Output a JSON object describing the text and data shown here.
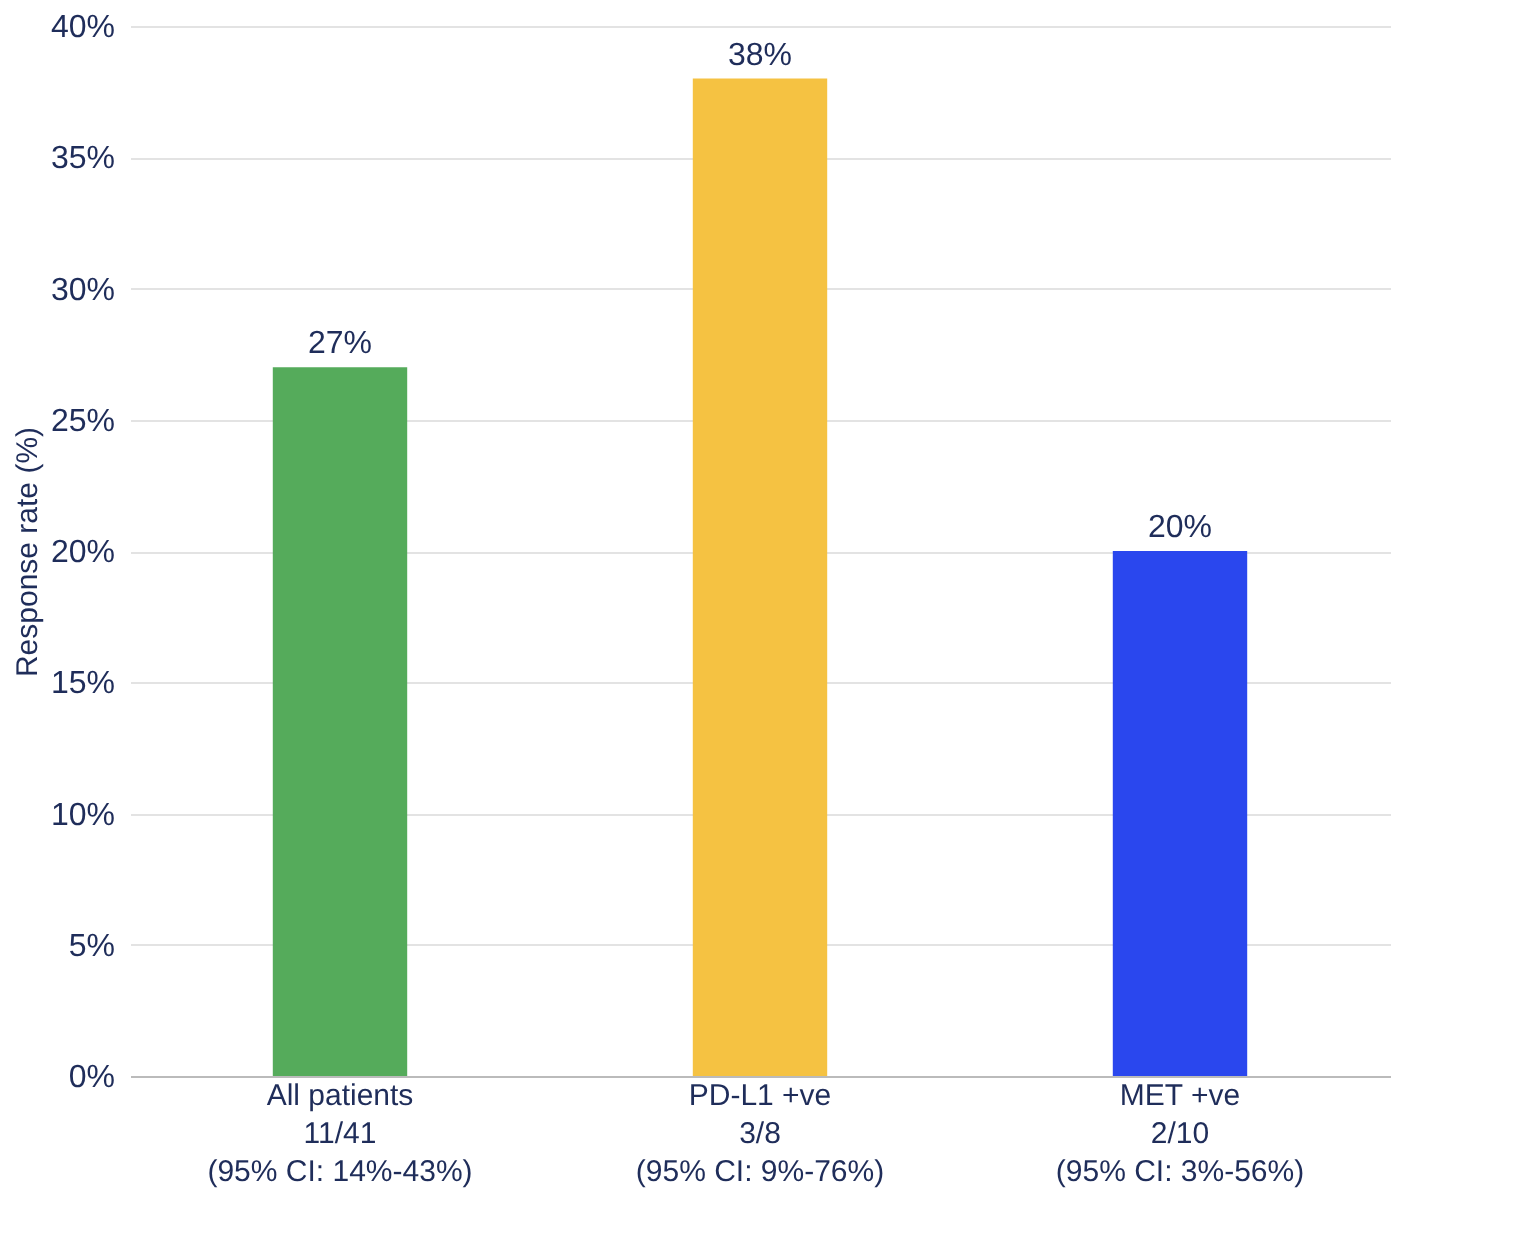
{
  "chart_data": {
    "type": "bar",
    "ylabel": "Response rate (%)",
    "categories": [
      "All patients\n11/41\n(95% CI: 14%-43%)",
      "PD-L1 +ve\n3/8\n(95% CI: 9%-76%)",
      "MET +ve\n2/10\n(95% CI: 3%-56%)"
    ],
    "values": [
      27,
      38,
      20
    ],
    "colors": [
      "#55ab5b",
      "#f5c242",
      "#2a47ee"
    ],
    "value_labels": [
      "27%",
      "38%",
      "20%"
    ],
    "ylim": [
      0,
      40
    ],
    "yticks": [
      {
        "value": 0,
        "label": "0%"
      },
      {
        "value": 5,
        "label": "5%"
      },
      {
        "value": 10,
        "label": "10%"
      },
      {
        "value": 15,
        "label": "15%"
      },
      {
        "value": 20,
        "label": "20%"
      },
      {
        "value": 25,
        "label": "25%"
      },
      {
        "value": 30,
        "label": "30%"
      },
      {
        "value": 35,
        "label": "35%"
      },
      {
        "value": 40,
        "label": "40%"
      }
    ],
    "grid": "y"
  }
}
